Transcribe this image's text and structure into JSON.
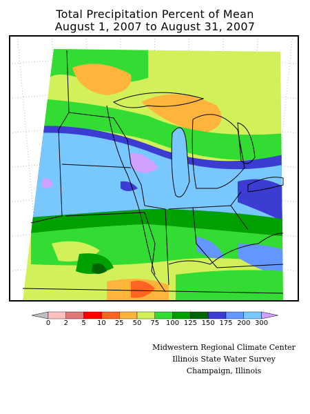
{
  "title_line1": "Total Precipitation Percent of Mean",
  "title_line2": "August 1, 2007 to August 31, 2007",
  "legend": {
    "ticks": [
      "0",
      "2",
      "5",
      "10",
      "25",
      "50",
      "75",
      "100",
      "125",
      "150",
      "175",
      "200",
      "300"
    ],
    "colors": [
      "#ffc0c0",
      "#e07878",
      "#ff0000",
      "#ff6420",
      "#ffb43c",
      "#d2f05a",
      "#32dc32",
      "#00a000",
      "#006400",
      "#3c3cd2",
      "#6496ff",
      "#78c8ff",
      "#d2a0ff"
    ],
    "under_color": "#c0c0c0",
    "over_color": "#d2a0ff"
  },
  "credits": {
    "line1": "Midwestern Regional Climate Center",
    "line2": "Illinois State Water Survey",
    "line3": "Champaign, Illinois"
  }
}
